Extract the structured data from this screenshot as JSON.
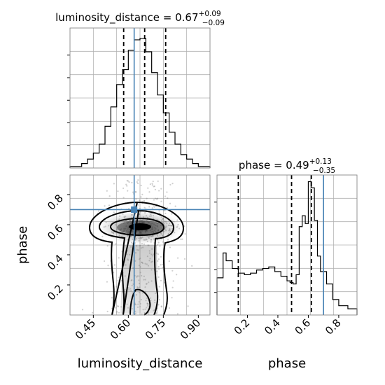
{
  "chart_data": {
    "type": "corner",
    "parameters": [
      "luminosity_distance",
      "phase"
    ],
    "truths": {
      "luminosity_distance": 0.625,
      "phase": 0.7
    },
    "truth_color": "#4682b4",
    "panels": {
      "ld_hist": {
        "title": {
          "main": "luminosity_distance = 0.67",
          "sup": "+0.09",
          "sub": "−0.09"
        },
        "xlim": [
          0.35,
          0.95
        ],
        "bin_edges": [
          0.35,
          0.375,
          0.4,
          0.425,
          0.45,
          0.475,
          0.5,
          0.525,
          0.55,
          0.575,
          0.6,
          0.625,
          0.65,
          0.675,
          0.7,
          0.725,
          0.75,
          0.775,
          0.8,
          0.825,
          0.85,
          0.875,
          0.9,
          0.925,
          0.95
        ],
        "counts": [
          1,
          1,
          3,
          6,
          10,
          16,
          28,
          41,
          56,
          66,
          79,
          86,
          87,
          78,
          64,
          49,
          37,
          24,
          16,
          9,
          6,
          3,
          1,
          1
        ],
        "quantiles": [
          0.58,
          0.67,
          0.76
        ]
      },
      "phase_hist": {
        "title": {
          "main": "phase = 0.49",
          "sup": "+0.13",
          "sub": "−0.35"
        },
        "xlim": [
          0.0,
          0.92
        ],
        "xticks": [
          0.2,
          0.4,
          0.6,
          0.8
        ],
        "xlabel": "phase",
        "bin_edges": [
          0.0,
          0.04,
          0.06,
          0.1,
          0.14,
          0.18,
          0.22,
          0.26,
          0.3,
          0.34,
          0.38,
          0.42,
          0.46,
          0.48,
          0.5,
          0.52,
          0.54,
          0.56,
          0.58,
          0.6,
          0.62,
          0.64,
          0.66,
          0.68,
          0.72,
          0.76,
          0.8,
          0.86,
          0.92
        ],
        "counts": [
          24,
          40,
          35,
          30,
          27,
          26,
          27,
          29,
          30,
          31,
          28,
          25,
          22,
          21,
          20,
          26,
          57,
          64,
          59,
          86,
          82,
          61,
          38,
          28,
          20,
          10,
          6,
          4
        ],
        "quantiles": [
          0.14,
          0.49,
          0.62
        ]
      },
      "joint": {
        "xlim": [
          0.35,
          0.95
        ],
        "ylim": [
          0.0,
          0.93
        ],
        "xticks": [
          0.45,
          0.6,
          0.75,
          0.9
        ],
        "yticks": [
          0.2,
          0.4,
          0.6,
          0.8
        ],
        "xlabel": "luminosity_distance",
        "ylabel": "phase",
        "mode": [
          0.625,
          0.57
        ]
      }
    }
  }
}
